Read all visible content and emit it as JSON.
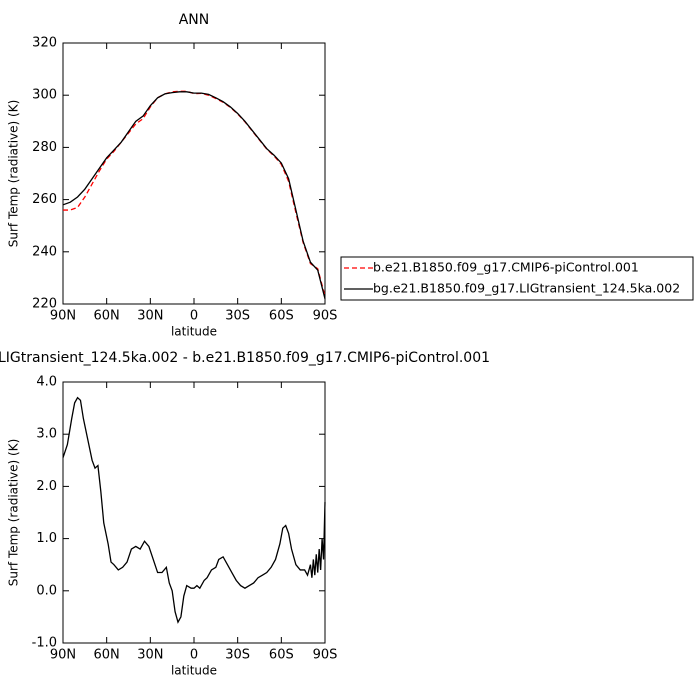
{
  "chart_data": [
    {
      "type": "line",
      "title": "ANN",
      "xlabel": "latitude",
      "ylabel": "Surf Temp (radiative) (K)",
      "x": [
        90,
        85,
        80,
        75,
        70,
        65,
        60,
        55,
        50,
        45,
        40,
        35,
        30,
        25,
        20,
        15,
        10,
        5,
        0,
        -5,
        -10,
        -15,
        -20,
        -25,
        -30,
        -35,
        -40,
        -45,
        -50,
        -55,
        -60,
        -65,
        -70,
        -75,
        -80,
        -85,
        -90
      ],
      "series": [
        {
          "name": "b.e21.B1850.f09_g17.CMIP6-piControl.001",
          "color": "#ff0000",
          "dash": true,
          "values": [
            256,
            256,
            257,
            261,
            266,
            271,
            275.5,
            278.5,
            282,
            285.5,
            289,
            291,
            295.5,
            299,
            300.5,
            301.3,
            301.5,
            301.5,
            300.6,
            300.7,
            300,
            298.7,
            297.3,
            295.3,
            292.8,
            289.8,
            286.3,
            282.8,
            279.3,
            276.7,
            273.5,
            267,
            255,
            243.5,
            235.5,
            233.5,
            223
          ]
        },
        {
          "name": "bg.e21.B1850.f09_g17.LIGtransient_124.5ka.002",
          "color": "#000000",
          "dash": false,
          "values": [
            258,
            259,
            261,
            264,
            268,
            272,
            276,
            279,
            282,
            286,
            290,
            292,
            296,
            299,
            300.5,
            301,
            301.3,
            301.3,
            300.8,
            300.8,
            300.3,
            299,
            297.5,
            295.5,
            293,
            290,
            286.5,
            283,
            279.5,
            277,
            274,
            268,
            256,
            244,
            236,
            233,
            222
          ]
        }
      ],
      "xlim": [
        90,
        -90
      ],
      "xticks": [
        {
          "value": 90,
          "label": "90N"
        },
        {
          "value": 60,
          "label": "60N"
        },
        {
          "value": 30,
          "label": "30N"
        },
        {
          "value": 0,
          "label": "0"
        },
        {
          "value": -30,
          "label": "30S"
        },
        {
          "value": -60,
          "label": "60S"
        },
        {
          "value": -90,
          "label": "90S"
        }
      ],
      "ylim": [
        220,
        320
      ],
      "yticks": [
        220,
        240,
        260,
        280,
        300,
        320
      ],
      "legend": "right"
    },
    {
      "type": "line",
      "title": "LIGtransient_124.5ka.002 - b.e21.B1850.f09_g17.CMIP6-piControl.001",
      "xlabel": "latitude",
      "ylabel": "Surf Temp (radiative) (K)",
      "color": "#000000",
      "x": [
        90,
        87,
        84,
        82,
        80,
        78,
        76,
        73,
        70,
        68,
        66,
        64,
        62,
        59,
        57,
        55,
        52,
        49,
        46,
        43,
        40,
        37,
        34,
        31,
        28,
        25,
        22,
        19,
        17,
        15,
        13,
        11,
        9,
        7,
        5,
        2,
        0,
        -2,
        -4,
        -7,
        -9,
        -12,
        -15,
        -17,
        -20,
        -23,
        -26,
        -29,
        -32,
        -35,
        -38,
        -41,
        -44,
        -47,
        -50,
        -53,
        -56,
        -59,
        -61,
        -63,
        -65,
        -67,
        -70,
        -73,
        -76,
        -78,
        -80,
        -81,
        -82,
        -83,
        -84,
        -85,
        -86,
        -87,
        -88,
        -89,
        -90
      ],
      "values": [
        2.55,
        2.8,
        3.3,
        3.6,
        3.7,
        3.65,
        3.3,
        2.9,
        2.5,
        2.35,
        2.4,
        1.9,
        1.3,
        0.9,
        0.55,
        0.5,
        0.4,
        0.45,
        0.55,
        0.8,
        0.85,
        0.8,
        0.95,
        0.85,
        0.6,
        0.35,
        0.35,
        0.45,
        0.15,
        0,
        -0.4,
        -0.6,
        -0.5,
        -0.1,
        0.1,
        0.05,
        0.05,
        0.1,
        0.05,
        0.2,
        0.25,
        0.4,
        0.45,
        0.6,
        0.65,
        0.5,
        0.35,
        0.2,
        0.1,
        0.05,
        0.1,
        0.15,
        0.25,
        0.3,
        0.35,
        0.45,
        0.6,
        0.9,
        1.2,
        1.25,
        1.1,
        0.8,
        0.5,
        0.4,
        0.4,
        0.3,
        0.5,
        0.25,
        0.6,
        0.3,
        0.7,
        0.35,
        0.8,
        0.4,
        1.0,
        0.6,
        1.7
      ],
      "xlim": [
        90,
        -90
      ],
      "xticks": [
        {
          "value": 90,
          "label": "90N"
        },
        {
          "value": 60,
          "label": "60N"
        },
        {
          "value": 30,
          "label": "30N"
        },
        {
          "value": 0,
          "label": "0"
        },
        {
          "value": -30,
          "label": "30S"
        },
        {
          "value": -60,
          "label": "60S"
        },
        {
          "value": -90,
          "label": "90S"
        }
      ],
      "ylim": [
        -1,
        4
      ],
      "yticks": [
        {
          "value": -1,
          "label": "-1.0"
        },
        {
          "value": 0,
          "label": "0.0"
        },
        {
          "value": 1,
          "label": "1.0"
        },
        {
          "value": 2,
          "label": "2.0"
        },
        {
          "value": 3,
          "label": "3.0"
        },
        {
          "value": 4,
          "label": "4.0"
        }
      ]
    }
  ]
}
